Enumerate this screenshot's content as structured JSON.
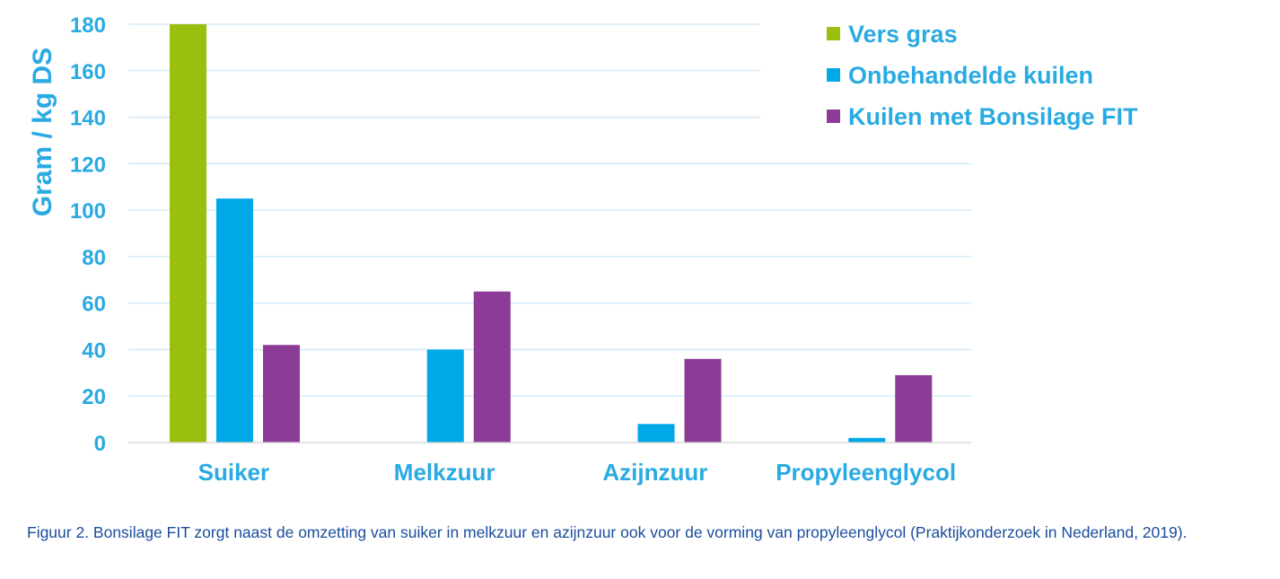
{
  "colors": {
    "text": "#29aae2",
    "grid": "#cfe6f6",
    "axis": "#d0d0d0",
    "caption": "#1a4d9c"
  },
  "chart_data": {
    "type": "bar",
    "title": "",
    "xlabel": "",
    "ylabel": "Gram / kg DS",
    "ylim": [
      0,
      180
    ],
    "yticks": [
      0,
      20,
      40,
      60,
      80,
      100,
      120,
      140,
      160,
      180
    ],
    "grid": true,
    "legend_position": "top-right",
    "categories": [
      "Suiker",
      "Melkzuur",
      "Azijnzuur",
      "Propyleenglycol"
    ],
    "series": [
      {
        "name": "Vers gras",
        "color": "#9bbf0f",
        "values": [
          180,
          null,
          null,
          null
        ]
      },
      {
        "name": "Onbehandelde kuilen",
        "color": "#00a8e8",
        "values": [
          105,
          40,
          8,
          2
        ]
      },
      {
        "name": "Kuilen met Bonsilage FIT",
        "color": "#8c3c96",
        "values": [
          42,
          65,
          36,
          29
        ]
      }
    ]
  },
  "caption": "Figuur 2. Bonsilage FIT zorgt naast de omzetting van suiker in melkzuur en azijnzuur ook voor de vorming van propyleenglycol (Praktijkonderzoek in Nederland, 2019)."
}
